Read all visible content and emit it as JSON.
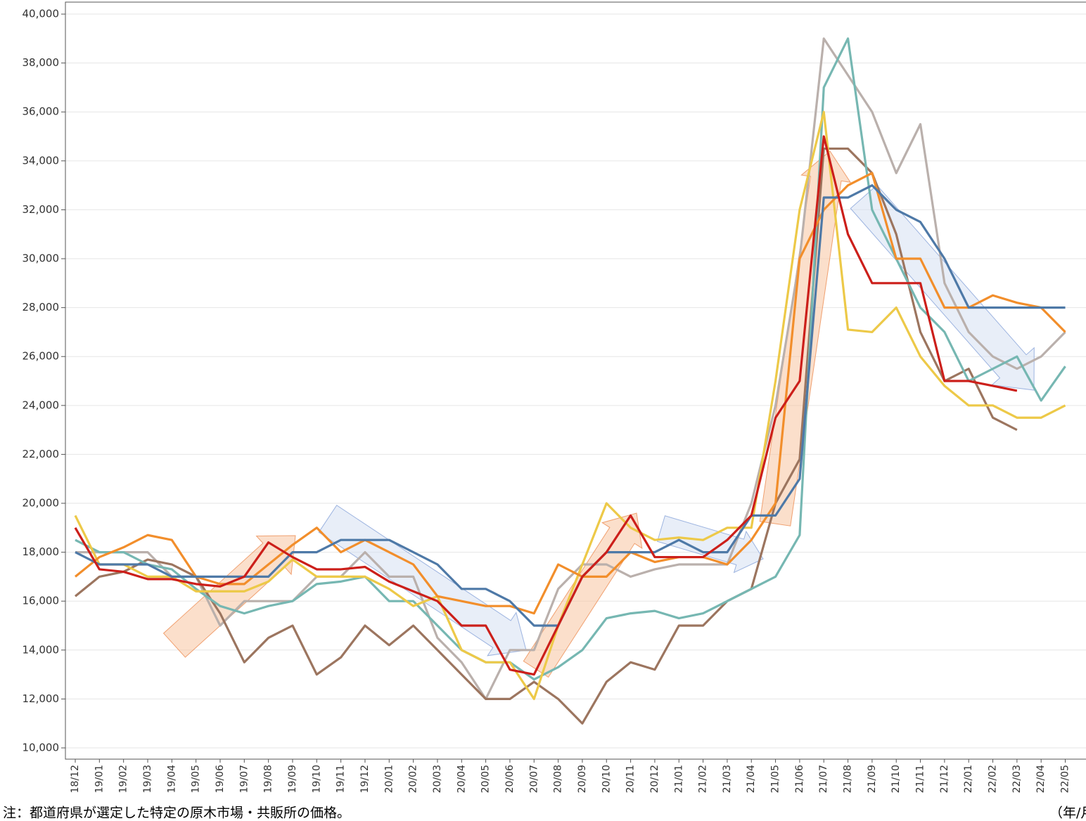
{
  "chart_data": {
    "type": "line",
    "categories": [
      "18/12",
      "19/01",
      "19/02",
      "19/03",
      "19/04",
      "19/05",
      "19/06",
      "19/07",
      "19/08",
      "19/09",
      "19/10",
      "19/11",
      "19/12",
      "20/01",
      "20/02",
      "20/03",
      "20/04",
      "20/05",
      "20/06",
      "20/07",
      "20/08",
      "20/09",
      "20/10",
      "20/11",
      "20/12",
      "21/01",
      "21/02",
      "21/03",
      "21/04",
      "21/05",
      "21/06",
      "21/07",
      "21/08",
      "21/09",
      "21/10",
      "21/11",
      "21/12",
      "22/01",
      "22/02",
      "22/03",
      "22/04",
      "22/05"
    ],
    "series": [
      {
        "color": "#bab0ac",
        "values": [
          18000,
          18000,
          18000,
          18000,
          17000,
          17000,
          15000,
          16000,
          16000,
          16000,
          17000,
          17000,
          18000,
          17000,
          17000,
          14500,
          13500,
          12000,
          14000,
          14000,
          16500,
          17500,
          17500,
          17000,
          17300,
          17500,
          17500,
          17500,
          20000,
          24000,
          30000,
          39000,
          37500,
          36000,
          33500,
          35500,
          29000,
          27000,
          26000,
          25500,
          26000,
          27000
        ]
      },
      {
        "color": "#9c755f",
        "values": [
          16200,
          17000,
          17200,
          17700,
          17500,
          17000,
          15500,
          13500,
          14500,
          15000,
          13000,
          13700,
          15000,
          14200,
          15000,
          14000,
          13000,
          12000,
          12000,
          12700,
          12000,
          11000,
          12700,
          13500,
          13200,
          15000,
          15000,
          16000,
          16500,
          20000,
          21800,
          34500,
          34500,
          33500,
          31000,
          27000,
          25000,
          25500,
          23500,
          23000,
          null,
          null
        ]
      },
      {
        "color": "#76b7b2",
        "values": [
          18500,
          18000,
          18000,
          17500,
          17300,
          16500,
          15800,
          15500,
          15800,
          16000,
          16700,
          16800,
          17000,
          16000,
          16000,
          15000,
          14000,
          13500,
          13500,
          12800,
          13300,
          14000,
          15300,
          15500,
          15600,
          15300,
          15500,
          16000,
          16500,
          17000,
          18700,
          37000,
          39000,
          32000,
          30000,
          28000,
          27000,
          25000,
          25500,
          26000,
          24200,
          25600
        ]
      },
      {
        "color": "#edc948",
        "values": [
          19500,
          17500,
          17500,
          17000,
          17000,
          16400,
          16400,
          16400,
          16800,
          17700,
          17000,
          17000,
          17000,
          16500,
          15800,
          16200,
          14000,
          13500,
          13500,
          12000,
          15000,
          17500,
          20000,
          19000,
          18500,
          18600,
          18500,
          19000,
          19000,
          25000,
          32000,
          36000,
          27100,
          27000,
          28000,
          26000,
          24800,
          24000,
          24000,
          23500,
          23500,
          24000
        ]
      },
      {
        "color": "#f28e2b",
        "values": [
          17000,
          17800,
          18200,
          18700,
          18500,
          17000,
          16700,
          16700,
          17500,
          18300,
          19000,
          18000,
          18500,
          18000,
          17500,
          16200,
          16000,
          15800,
          15800,
          15500,
          17500,
          17000,
          17000,
          18000,
          17600,
          17800,
          17800,
          17500,
          18500,
          20000,
          30000,
          32000,
          33000,
          33500,
          30000,
          30000,
          28000,
          28000,
          28500,
          28200,
          28000,
          27000
        ]
      },
      {
        "color": "#4e79a7",
        "values": [
          18000,
          17500,
          17500,
          17500,
          17000,
          17000,
          17000,
          17000,
          17000,
          18000,
          18000,
          18500,
          18500,
          18500,
          18000,
          17500,
          16500,
          16500,
          16000,
          15000,
          15000,
          17000,
          18000,
          18000,
          18000,
          18500,
          18000,
          18000,
          19500,
          19500,
          21000,
          32500,
          32500,
          33000,
          32000,
          31500,
          30000,
          28000,
          28000,
          28000,
          28000,
          28000
        ]
      },
      {
        "color": "#cc1f1a",
        "values": [
          19000,
          17300,
          17200,
          16900,
          16900,
          16700,
          16600,
          17000,
          18400,
          17800,
          17300,
          17300,
          17400,
          16800,
          16400,
          16000,
          15000,
          15000,
          13200,
          13000,
          15000,
          17000,
          18000,
          19500,
          17800,
          17800,
          17800,
          18500,
          19500,
          23500,
          25000,
          35000,
          31000,
          29000,
          29000,
          29000,
          25000,
          25000,
          24800,
          24600,
          null,
          null
        ]
      }
    ],
    "ylim": [
      9540,
      40490
    ],
    "yticks": [
      {
        "value": 10000,
        "label": "10,000"
      },
      {
        "value": 12000,
        "label": "12,000"
      },
      {
        "value": 14000,
        "label": "14,000"
      },
      {
        "value": 16000,
        "label": "16,000"
      },
      {
        "value": 18000,
        "label": "18,000"
      },
      {
        "value": 20000,
        "label": "20,000"
      },
      {
        "value": 22000,
        "label": "22,000"
      },
      {
        "value": 24000,
        "label": "24,000"
      },
      {
        "value": 26000,
        "label": "26,000"
      },
      {
        "value": 28000,
        "label": "28,000"
      },
      {
        "value": 30000,
        "label": "30,000"
      },
      {
        "value": 32000,
        "label": "32,000"
      },
      {
        "value": 34000,
        "label": "34,000"
      },
      {
        "value": 36000,
        "label": "36,000"
      },
      {
        "value": 38000,
        "label": "38,000"
      },
      {
        "value": 40000,
        "label": "40,000"
      }
    ],
    "grid": true,
    "note": "注：都道府県が選定した特定の原木市場・共販所の価格。",
    "x_unit": "（年/月）"
  }
}
